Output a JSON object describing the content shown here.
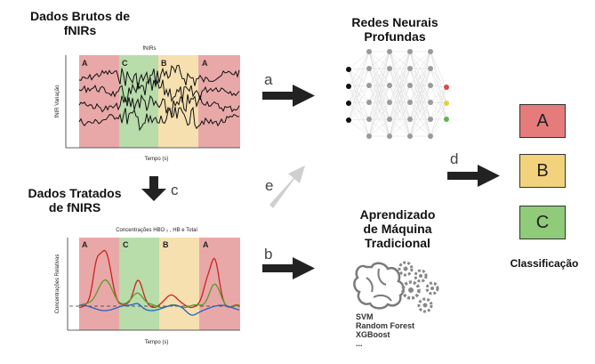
{
  "raw_title": [
    "Dados Brutos de",
    "fNIRs"
  ],
  "treated_title": [
    "Dados Tratados",
    "de fNIRS"
  ],
  "dnn_title": [
    "Redes Neurais",
    "Profundas"
  ],
  "ml_title": [
    "Aprendizado",
    "de Máquina",
    "Tradicional"
  ],
  "classification_label": "Classificação",
  "arrows": {
    "a": "a",
    "b": "b",
    "c": "c",
    "d": "d",
    "e": "e"
  },
  "plot1": {
    "title": "fNIRs",
    "ylabel": "fNIR  Variação",
    "xlabel": "Tempo (s)",
    "segments": [
      "A",
      "C",
      "B",
      "A"
    ]
  },
  "plot2": {
    "title": "Concentrações HBO ₂ , HB e Total",
    "ylabel": "Concentrações Relativas",
    "xlabel": "Tempo (s)",
    "segments": [
      "A",
      "C",
      "B",
      "A"
    ]
  },
  "classes": [
    {
      "label": "A",
      "color": "#e57b7b"
    },
    {
      "label": "B",
      "color": "#f3d27e"
    },
    {
      "label": "C",
      "color": "#8fcb78"
    }
  ],
  "algorithms": [
    "SVM",
    "Random Forest",
    "XGBoost",
    "..."
  ],
  "colors": {
    "seg_A": "#e9a8a8",
    "seg_C": "#b8dcaa",
    "seg_B": "#f6e0b0",
    "hbo": "#cc2222",
    "hb": "#2a5fc0",
    "total": "#5a9a2a",
    "arrow": "#222222",
    "arrow_faded": "#c8c8c8"
  }
}
